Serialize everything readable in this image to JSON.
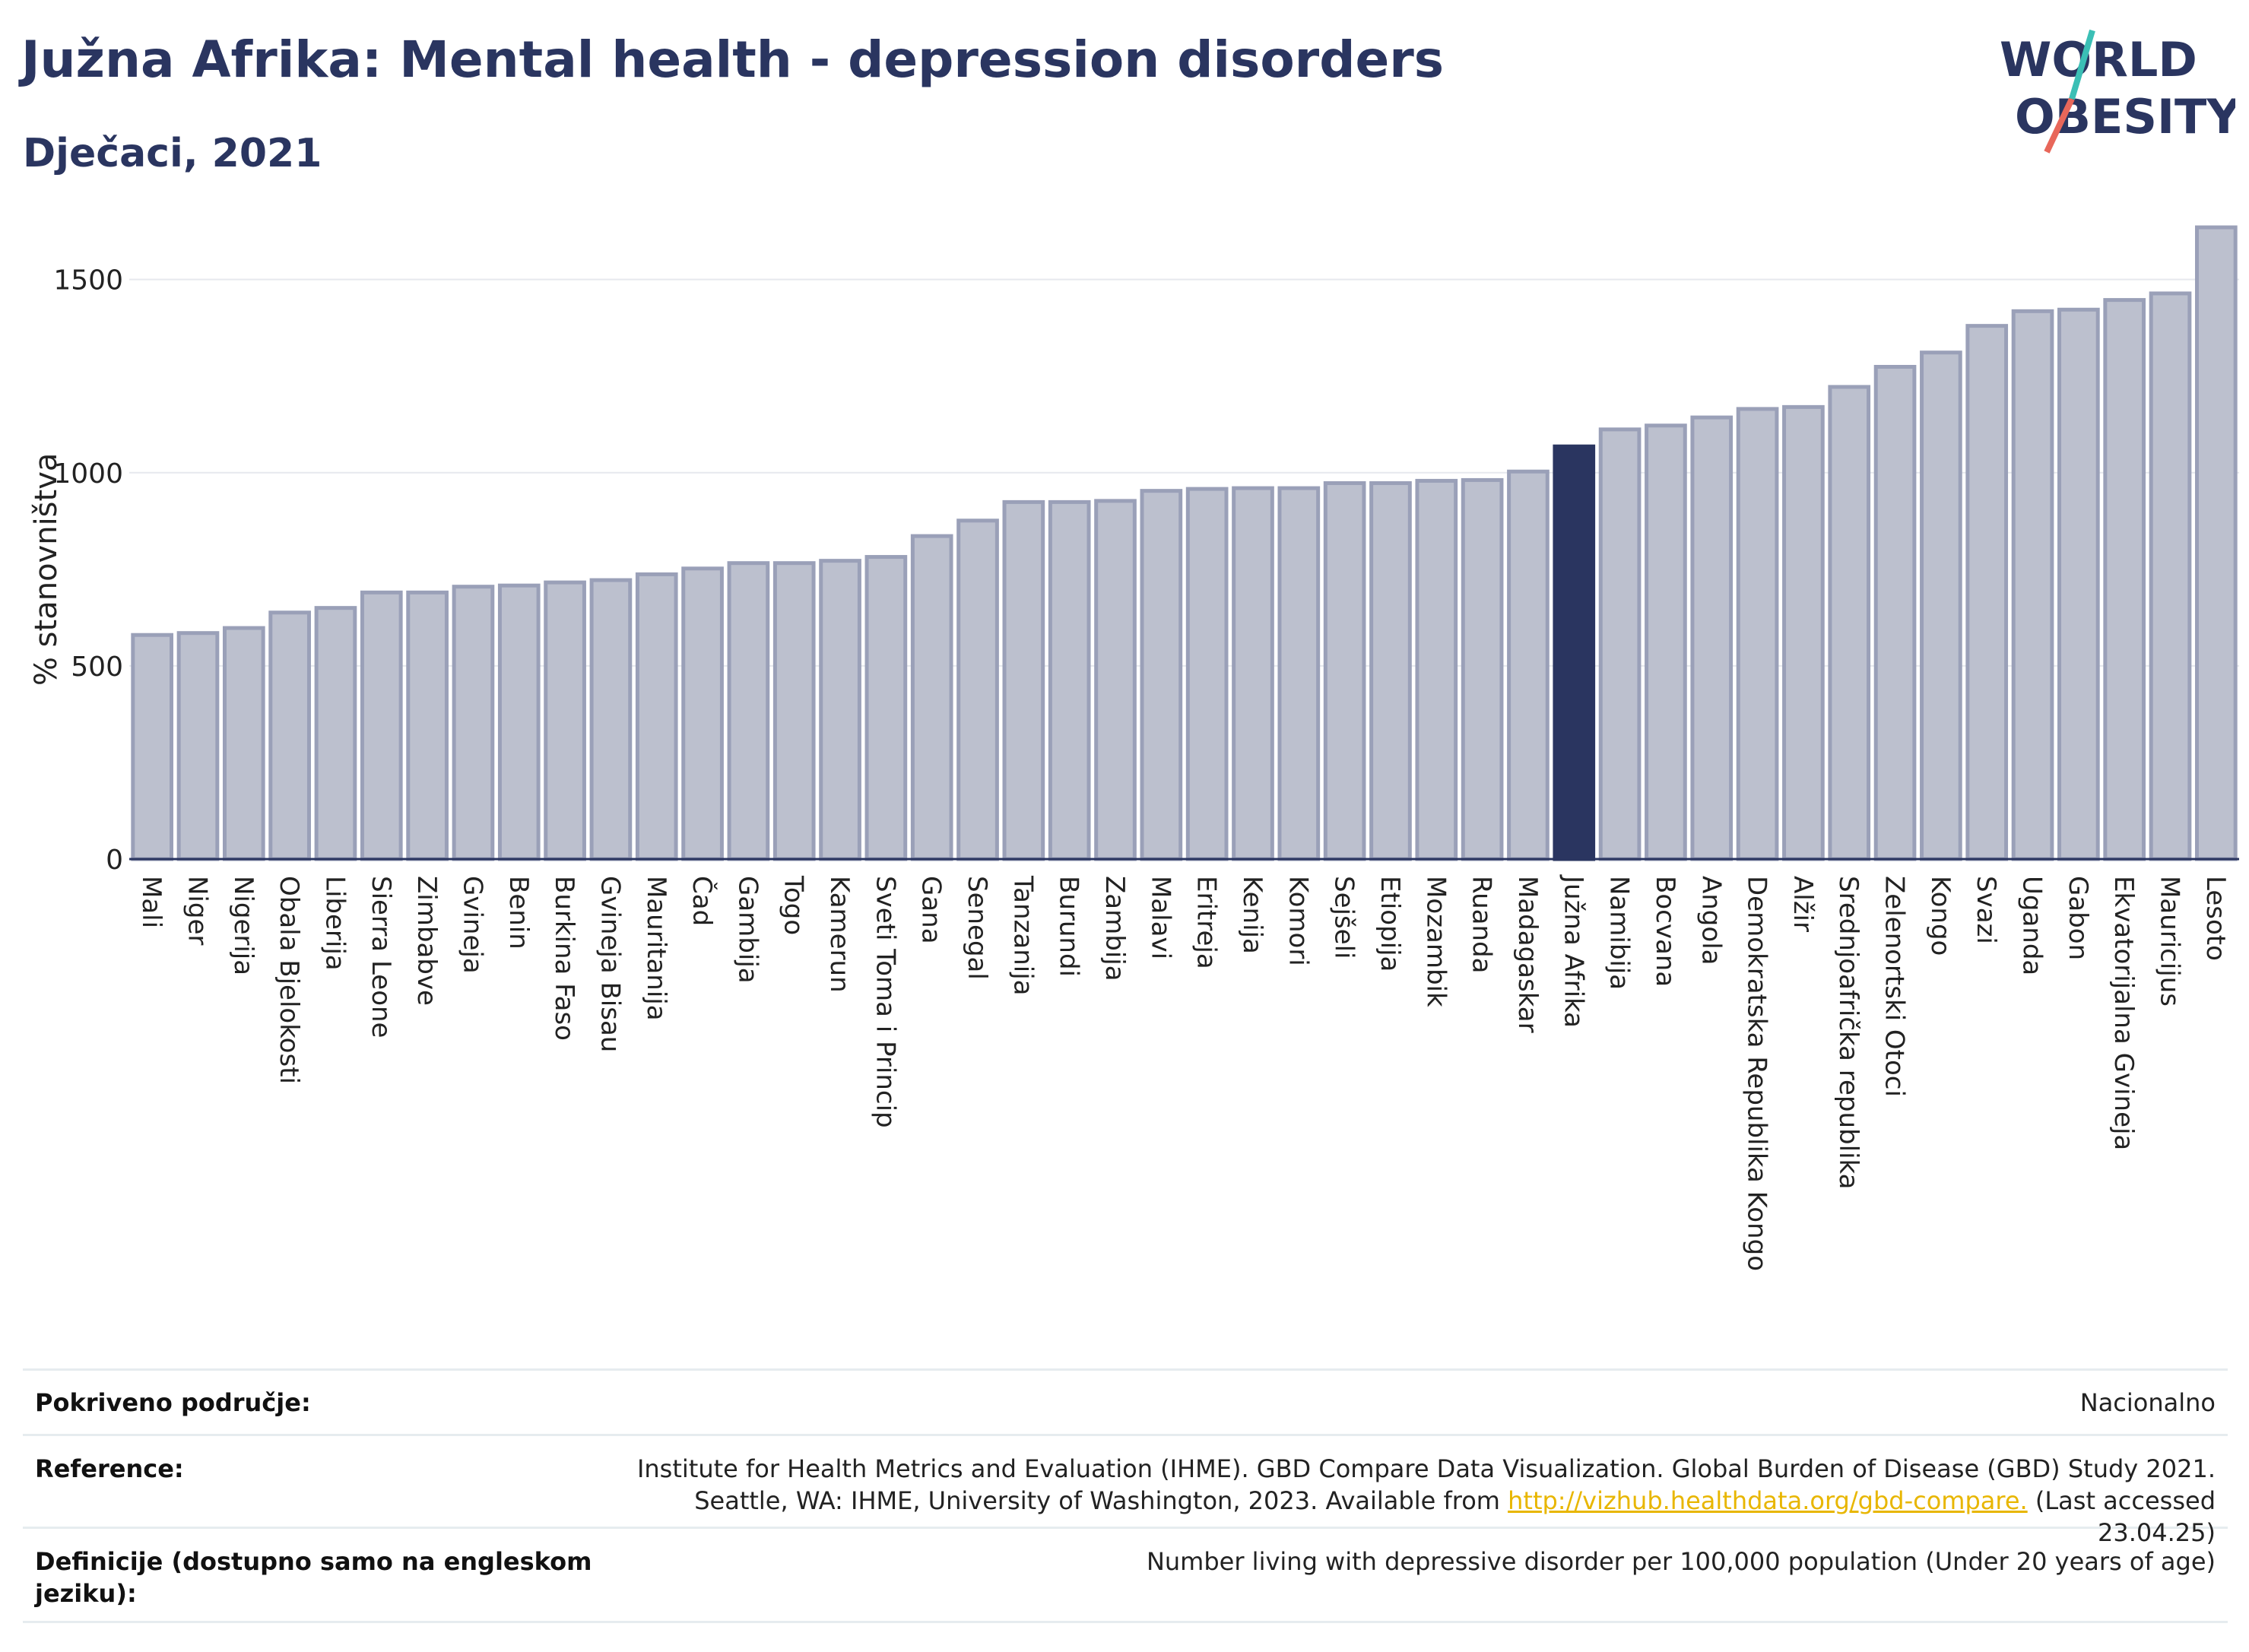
{
  "header": {
    "title": "Južna Afrika: Mental health - depression disorders",
    "subtitle": "Dječaci, 2021"
  },
  "logo": {
    "line1": "WORLD",
    "line2": "OBESITY"
  },
  "colors": {
    "bar": "#bcc0ce",
    "bar_border": "#9aa0b8",
    "highlight": "#2a3560",
    "grid": "#e6e9ee",
    "axis": "#2a3560",
    "logo_teal": "#3bbfb5",
    "logo_red": "#e8675a"
  },
  "chart_data": {
    "type": "bar",
    "title": "Južna Afrika: Mental health - depression disorders",
    "subtitle": "Dječaci, 2021",
    "ylabel": "% stanovništva",
    "ylim": [
      0,
      1700
    ],
    "yticks": [
      0,
      500,
      1000,
      1500
    ],
    "grid": true,
    "highlight": "Južna Afrika",
    "categories": [
      "Mali",
      "Niger",
      "Nigerija",
      "Obala Bjelokosti",
      "Liberija",
      "Sierra Leone",
      "Zimbabve",
      "Gvineja",
      "Benin",
      "Burkina Faso",
      "Gvineja Bisau",
      "Mauritanija",
      "Čad",
      "Gambija",
      "Togo",
      "Kamerun",
      "Sveti Toma i Princip",
      "Gana",
      "Senegal",
      "Tanzanija",
      "Burundi",
      "Zambija",
      "Malavi",
      "Eritreja",
      "Kenija",
      "Komori",
      "Sejšeli",
      "Etiopija",
      "Mozambik",
      "Ruanda",
      "Madagaskar",
      "Južna Afrika",
      "Namibija",
      "Bocvana",
      "Angola",
      "Demokratska Republika Kongo",
      "Alžir",
      "Srednjoafrička republika",
      "Zelenortski Otoci",
      "Kongo",
      "Svazi",
      "Uganda",
      "Gabon",
      "Ekvatorijalna Gvineja",
      "Mauricijus",
      "Lesoto"
    ],
    "values": [
      580,
      585,
      598,
      638,
      650,
      690,
      690,
      705,
      708,
      716,
      722,
      737,
      752,
      766,
      766,
      772,
      782,
      836,
      876,
      924,
      924,
      927,
      953,
      958,
      960,
      960,
      973,
      973,
      979,
      981,
      1003,
      1068,
      1112,
      1122,
      1143,
      1165,
      1170,
      1222,
      1274,
      1311,
      1380,
      1418,
      1422,
      1447,
      1464,
      1635
    ]
  },
  "info": {
    "rows": [
      {
        "label": "Pokriveno područje:",
        "value": "Nacionalno"
      },
      {
        "label": "Reference:",
        "value_line1": "Institute for Health Metrics and Evaluation (IHME). GBD Compare Data Visualization. Global Burden of Disease (GBD) Study 2021.",
        "value_line2_pre": "Seattle, WA: IHME, University of Washington, 2023. Available from ",
        "link": "http://vizhub.healthdata.org/gbd-compare.",
        "value_line2_post": " (Last accessed 23.04.25)"
      },
      {
        "label": "Definicije (dostupno samo na engleskom jeziku):",
        "value": "Number living with depressive disorder per 100,000 population (Under 20 years of age)"
      }
    ]
  }
}
